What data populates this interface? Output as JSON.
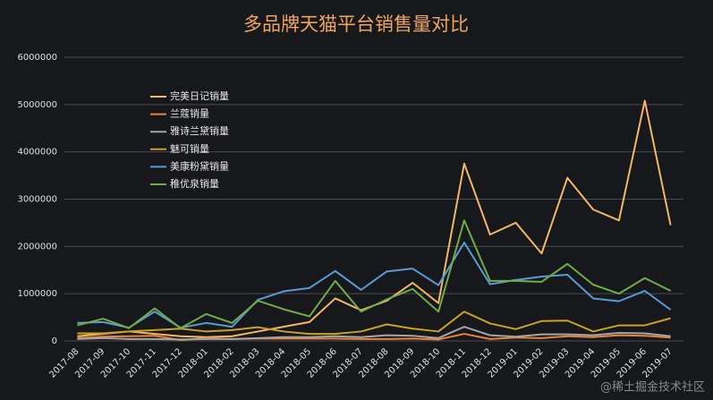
{
  "chart_data": {
    "type": "line",
    "title": "多品牌天猫平台销售量对比",
    "categories": [
      "2017-08",
      "2017-09",
      "2017-10",
      "2017-11",
      "2017-12",
      "2018-01",
      "2018-02",
      "2018-03",
      "2018-04",
      "2018-05",
      "2018-06",
      "2018-07",
      "2018-08",
      "2018-09",
      "2018-10",
      "2018-11",
      "2018-12",
      "2019-01",
      "2019-02",
      "2019-03",
      "2019-04",
      "2019-05",
      "2019-06",
      "2019-07"
    ],
    "series": [
      {
        "name": "完美日记销量",
        "color": "#f4b862",
        "values": [
          100000,
          150000,
          200000,
          150000,
          100000,
          80000,
          100000,
          200000,
          300000,
          400000,
          900000,
          650000,
          850000,
          1230000,
          800000,
          3750000,
          2250000,
          2500000,
          1850000,
          3450000,
          2780000,
          2550000,
          5080000,
          2450000
        ]
      },
      {
        "name": "兰蔻销量",
        "color": "#e8833a",
        "values": [
          60000,
          90000,
          100000,
          110000,
          20000,
          60000,
          40000,
          50000,
          50000,
          50000,
          50000,
          40000,
          40000,
          50000,
          30000,
          150000,
          40000,
          70000,
          60000,
          100000,
          80000,
          120000,
          110000,
          70000
        ]
      },
      {
        "name": "雅诗兰黛销量",
        "color": "#a5a5a5",
        "values": [
          40000,
          60000,
          40000,
          40000,
          30000,
          40000,
          40000,
          60000,
          80000,
          80000,
          100000,
          80000,
          120000,
          110000,
          60000,
          300000,
          120000,
          90000,
          140000,
          140000,
          120000,
          170000,
          160000,
          100000
        ]
      },
      {
        "name": "魅可销量",
        "color": "#c9a227",
        "values": [
          160000,
          160000,
          200000,
          230000,
          260000,
          200000,
          230000,
          290000,
          200000,
          150000,
          150000,
          200000,
          350000,
          260000,
          200000,
          620000,
          370000,
          250000,
          420000,
          430000,
          200000,
          330000,
          330000,
          480000
        ]
      },
      {
        "name": "美康粉黛销量",
        "color": "#5b9bd5",
        "values": [
          380000,
          400000,
          280000,
          620000,
          280000,
          380000,
          300000,
          870000,
          1050000,
          1120000,
          1480000,
          1080000,
          1470000,
          1530000,
          1180000,
          2080000,
          1200000,
          1290000,
          1360000,
          1400000,
          900000,
          840000,
          1060000,
          660000
        ]
      },
      {
        "name": "稚优泉销量",
        "color": "#70ad47",
        "values": [
          330000,
          470000,
          270000,
          690000,
          270000,
          570000,
          380000,
          850000,
          670000,
          520000,
          1270000,
          620000,
          880000,
          1100000,
          620000,
          2550000,
          1270000,
          1270000,
          1250000,
          1630000,
          1190000,
          1000000,
          1330000,
          1060000
        ]
      }
    ],
    "ylim": [
      0,
      6000000
    ],
    "yticks": [
      0,
      1000000,
      2000000,
      3000000,
      4000000,
      5000000,
      6000000
    ],
    "grid": true,
    "watermark": "@稀土掘金技术社区"
  }
}
